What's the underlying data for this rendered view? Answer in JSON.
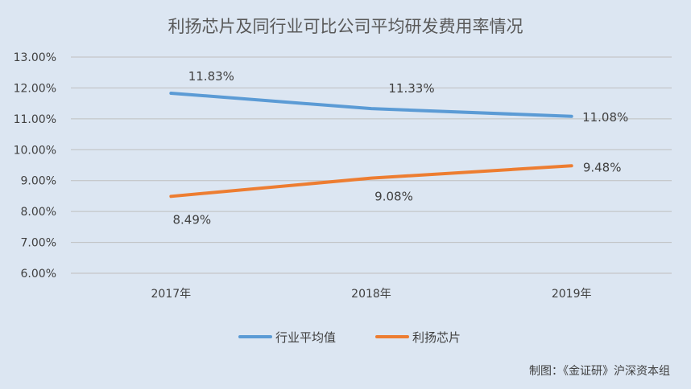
{
  "chart_data": {
    "type": "line",
    "title": "利扬芯片及同行业可比公司平均研发费用率情况",
    "categories": [
      "2017年",
      "2018年",
      "2019年"
    ],
    "series": [
      {
        "name": "行业平均值",
        "values": [
          11.83,
          11.33,
          11.08
        ],
        "labels": [
          "11.83%",
          "11.33%",
          "11.08%"
        ],
        "color": "#5b9bd5"
      },
      {
        "name": "利扬芯片",
        "values": [
          8.49,
          9.08,
          9.48
        ],
        "labels": [
          "8.49%",
          "9.08%",
          "9.48%"
        ],
        "color": "#ed7d31"
      }
    ],
    "ylim": [
      6,
      13
    ],
    "yticks": [
      "6.00%",
      "7.00%",
      "8.00%",
      "9.00%",
      "10.00%",
      "11.00%",
      "12.00%",
      "13.00%"
    ],
    "grid": true,
    "legend": "bottom"
  },
  "source": "制图：《金证研》沪深资本组"
}
